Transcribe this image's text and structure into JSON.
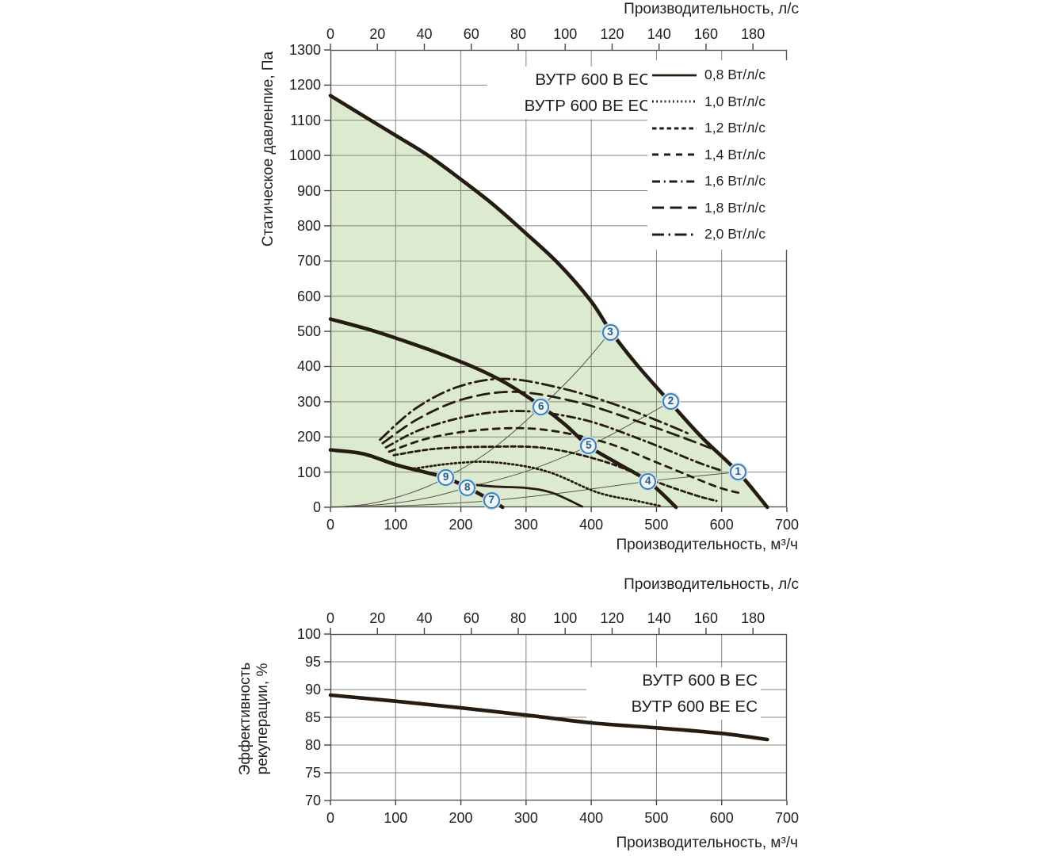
{
  "colors": {
    "background": "#ffffff",
    "curve": "#261b11",
    "area_fill": "#dcebd0",
    "grid": "#85857d",
    "frame": "#55554b",
    "thin_line": "#55554a",
    "marker_border": "#3c7fb1",
    "marker_fill": "#eef4f9",
    "marker_text": "#1c618e",
    "text": "#1f1f1f"
  },
  "chart_data": [
    {
      "type": "line",
      "name": "fan-performance-curve",
      "titles": [
        "ВУТР 600 В ЕС",
        "ВУТР 600 ВЕ ЕС"
      ],
      "ylabel": "Статическое давленпие, Па",
      "xlabel_bottom": "Производительность, м³/ч",
      "xlabel_top": "Производительность, л/с",
      "xlim": [
        0,
        700
      ],
      "ylim": [
        0,
        1300
      ],
      "x_ticks_bottom": [
        0,
        100,
        200,
        300,
        400,
        500,
        600,
        700
      ],
      "x_ticks_top_ls": [
        0,
        20,
        40,
        60,
        80,
        100,
        120,
        140,
        160,
        180
      ],
      "ls_to_m3h": 3.6,
      "y_ticks": [
        0,
        100,
        200,
        300,
        400,
        500,
        600,
        700,
        800,
        900,
        1000,
        1100,
        1200,
        1300
      ],
      "grid": true,
      "legend_position": "top-right",
      "legend": [
        {
          "label": "0,8 Вт/л/с",
          "pattern": "solid"
        },
        {
          "label": "1,0 Вт/л/с",
          "pattern": "dotted"
        },
        {
          "label": "1,2 Вт/л/с",
          "pattern": "dash-small"
        },
        {
          "label": "1,4 Вт/л/с",
          "pattern": "dash-medium"
        },
        {
          "label": "1,6 Вт/л/с",
          "pattern": "dash-dot"
        },
        {
          "label": "1,8 Вт/л/с",
          "pattern": "dash-long"
        },
        {
          "label": "2,0 Вт/л/с",
          "pattern": "dash-dot-long"
        }
      ],
      "series": [
        {
          "name": "fan-curve-max-speed",
          "style": "fan",
          "pattern": "solid",
          "points": [
            [
              0,
              1170
            ],
            [
              60,
              1102
            ],
            [
              100,
              1057
            ],
            [
              150,
              1000
            ],
            [
              200,
              932
            ],
            [
              250,
              860
            ],
            [
              300,
              778
            ],
            [
              350,
              692
            ],
            [
              400,
              585
            ],
            [
              430,
              500
            ],
            [
              470,
              405
            ],
            [
              520,
              300
            ],
            [
              570,
              198
            ],
            [
              625,
              100
            ],
            [
              670,
              0
            ]
          ]
        },
        {
          "name": "fan-curve-mid-speed",
          "style": "fan",
          "pattern": "solid",
          "points": [
            [
              0,
              535
            ],
            [
              60,
              505
            ],
            [
              100,
              481
            ],
            [
              160,
              442
            ],
            [
              220,
              398
            ],
            [
              270,
              352
            ],
            [
              325,
              285
            ],
            [
              360,
              235
            ],
            [
              396,
              174
            ],
            [
              440,
              125
            ],
            [
              487,
              74
            ],
            [
              530,
              0
            ]
          ]
        },
        {
          "name": "fan-curve-min-speed",
          "style": "fan",
          "pattern": "solid",
          "points": [
            [
              0,
              163
            ],
            [
              50,
              152
            ],
            [
              100,
              121
            ],
            [
              140,
              102
            ],
            [
              177,
              84
            ],
            [
              210,
              56
            ],
            [
              247,
              19
            ],
            [
              264,
              0
            ]
          ]
        },
        {
          "name": "sfp-0.8",
          "legend_label": "0,8 Вт/л/с",
          "style": "sfp",
          "pattern": "solid",
          "points": [
            [
              204,
              67
            ],
            [
              250,
              59
            ],
            [
              300,
              55
            ],
            [
              340,
              41
            ],
            [
              386,
              2
            ]
          ]
        },
        {
          "name": "sfp-1.0",
          "legend_label": "1,0 Вт/л/с",
          "style": "sfp",
          "pattern": "dotted",
          "points": [
            [
              128,
              110
            ],
            [
              190,
              125
            ],
            [
              250,
              128
            ],
            [
              330,
              103
            ],
            [
              410,
              42
            ],
            [
              470,
              18
            ],
            [
              505,
              4
            ]
          ]
        },
        {
          "name": "sfp-1.2",
          "legend_label": "1,2 Вт/л/с",
          "style": "sfp",
          "pattern": "dash-small",
          "points": [
            [
              97,
              148
            ],
            [
              160,
              166
            ],
            [
              240,
              172
            ],
            [
              330,
              168
            ],
            [
              420,
              130
            ],
            [
              500,
              72
            ],
            [
              560,
              34
            ],
            [
              592,
              18
            ]
          ]
        },
        {
          "name": "sfp-1.4",
          "legend_label": "1,4 Вт/л/с",
          "style": "sfp",
          "pattern": "dash-medium",
          "points": [
            [
              90,
              158
            ],
            [
              150,
              196
            ],
            [
              230,
              220
            ],
            [
              320,
              222
            ],
            [
              420,
              185
            ],
            [
              510,
              120
            ],
            [
              590,
              60
            ],
            [
              628,
              40
            ]
          ]
        },
        {
          "name": "sfp-1.6",
          "legend_label": "1,6 Вт/л/с",
          "style": "sfp",
          "pattern": "dash-dot",
          "points": [
            [
              85,
              170
            ],
            [
              140,
              222
            ],
            [
              220,
              262
            ],
            [
              300,
              273
            ],
            [
              390,
              248
            ],
            [
              480,
              190
            ],
            [
              560,
              130
            ],
            [
              600,
              104
            ]
          ]
        },
        {
          "name": "sfp-1.8",
          "legend_label": "1,8 Вт/л/с",
          "style": "sfp",
          "pattern": "dash-long",
          "points": [
            [
              80,
              182
            ],
            [
              135,
              252
            ],
            [
              205,
              308
            ],
            [
              285,
              328
            ],
            [
              380,
              298
            ],
            [
              470,
              245
            ],
            [
              545,
              195
            ],
            [
              583,
              168
            ]
          ]
        },
        {
          "name": "sfp-2.0",
          "legend_label": "2,0 Вт/л/с",
          "style": "sfp",
          "pattern": "dash-dot-long",
          "points": [
            [
              76,
              192
            ],
            [
              130,
              280
            ],
            [
              195,
              342
            ],
            [
              268,
              365
            ],
            [
              355,
              338
            ],
            [
              440,
              290
            ],
            [
              510,
              240
            ],
            [
              552,
              207
            ]
          ]
        },
        {
          "name": "system-line-a",
          "style": "thin",
          "pattern": "solid",
          "points": [
            [
              0,
              0
            ],
            [
              60,
              10
            ],
            [
              120,
              39
            ],
            [
              177,
              84
            ],
            [
              250,
              168
            ],
            [
              323,
              285
            ],
            [
              380,
              390
            ],
            [
              429,
              497
            ]
          ]
        },
        {
          "name": "system-line-b",
          "style": "thin",
          "pattern": "solid",
          "points": [
            [
              0,
              0
            ],
            [
              80,
              8
            ],
            [
              150,
              27
            ],
            [
              210,
              56
            ],
            [
              300,
              102
            ],
            [
              396,
              174
            ],
            [
              460,
              236
            ],
            [
              522,
              300
            ]
          ]
        },
        {
          "name": "system-line-c",
          "style": "thin",
          "pattern": "solid",
          "points": [
            [
              0,
              0
            ],
            [
              120,
              5
            ],
            [
              247,
              19
            ],
            [
              360,
              42
            ],
            [
              487,
              74
            ],
            [
              560,
              88
            ],
            [
              625,
              100
            ]
          ]
        }
      ],
      "area": {
        "name": "operating-range",
        "under_series": "fan-curve-max-speed"
      },
      "operating_points": [
        {
          "n": "1",
          "x": 625,
          "y": 100
        },
        {
          "n": "2",
          "x": 522,
          "y": 300
        },
        {
          "n": "3",
          "x": 429,
          "y": 497
        },
        {
          "n": "4",
          "x": 487,
          "y": 74
        },
        {
          "n": "5",
          "x": 396,
          "y": 174
        },
        {
          "n": "6",
          "x": 323,
          "y": 285
        },
        {
          "n": "7",
          "x": 247,
          "y": 19
        },
        {
          "n": "8",
          "x": 210,
          "y": 56
        },
        {
          "n": "9",
          "x": 177,
          "y": 84
        }
      ]
    },
    {
      "type": "line",
      "name": "heat-recovery-efficiency",
      "titles": [
        "ВУТР 600 В ЕС",
        "ВУТР 600 ВЕ ЕС"
      ],
      "ylabel_lines": [
        "Эффективность",
        "рекуперации, %"
      ],
      "xlabel_bottom": "Производительность, м³/ч",
      "xlabel_top": "Производительность, л/с",
      "xlim": [
        0,
        700
      ],
      "ylim": [
        70,
        100
      ],
      "x_ticks_bottom": [
        0,
        100,
        200,
        300,
        400,
        500,
        600,
        700
      ],
      "x_ticks_top_ls": [
        0,
        20,
        40,
        60,
        80,
        100,
        120,
        140,
        160,
        180
      ],
      "ls_to_m3h": 3.6,
      "y_ticks": [
        70,
        75,
        80,
        85,
        90,
        95,
        100
      ],
      "grid": true,
      "series": [
        {
          "name": "efficiency-curve",
          "style": "fan",
          "pattern": "solid",
          "points": [
            [
              0,
              89
            ],
            [
              100,
              87.9
            ],
            [
              200,
              86.7
            ],
            [
              300,
              85.4
            ],
            [
              400,
              84
            ],
            [
              500,
              83.1
            ],
            [
              600,
              82.1
            ],
            [
              670,
              81
            ]
          ]
        }
      ]
    }
  ]
}
